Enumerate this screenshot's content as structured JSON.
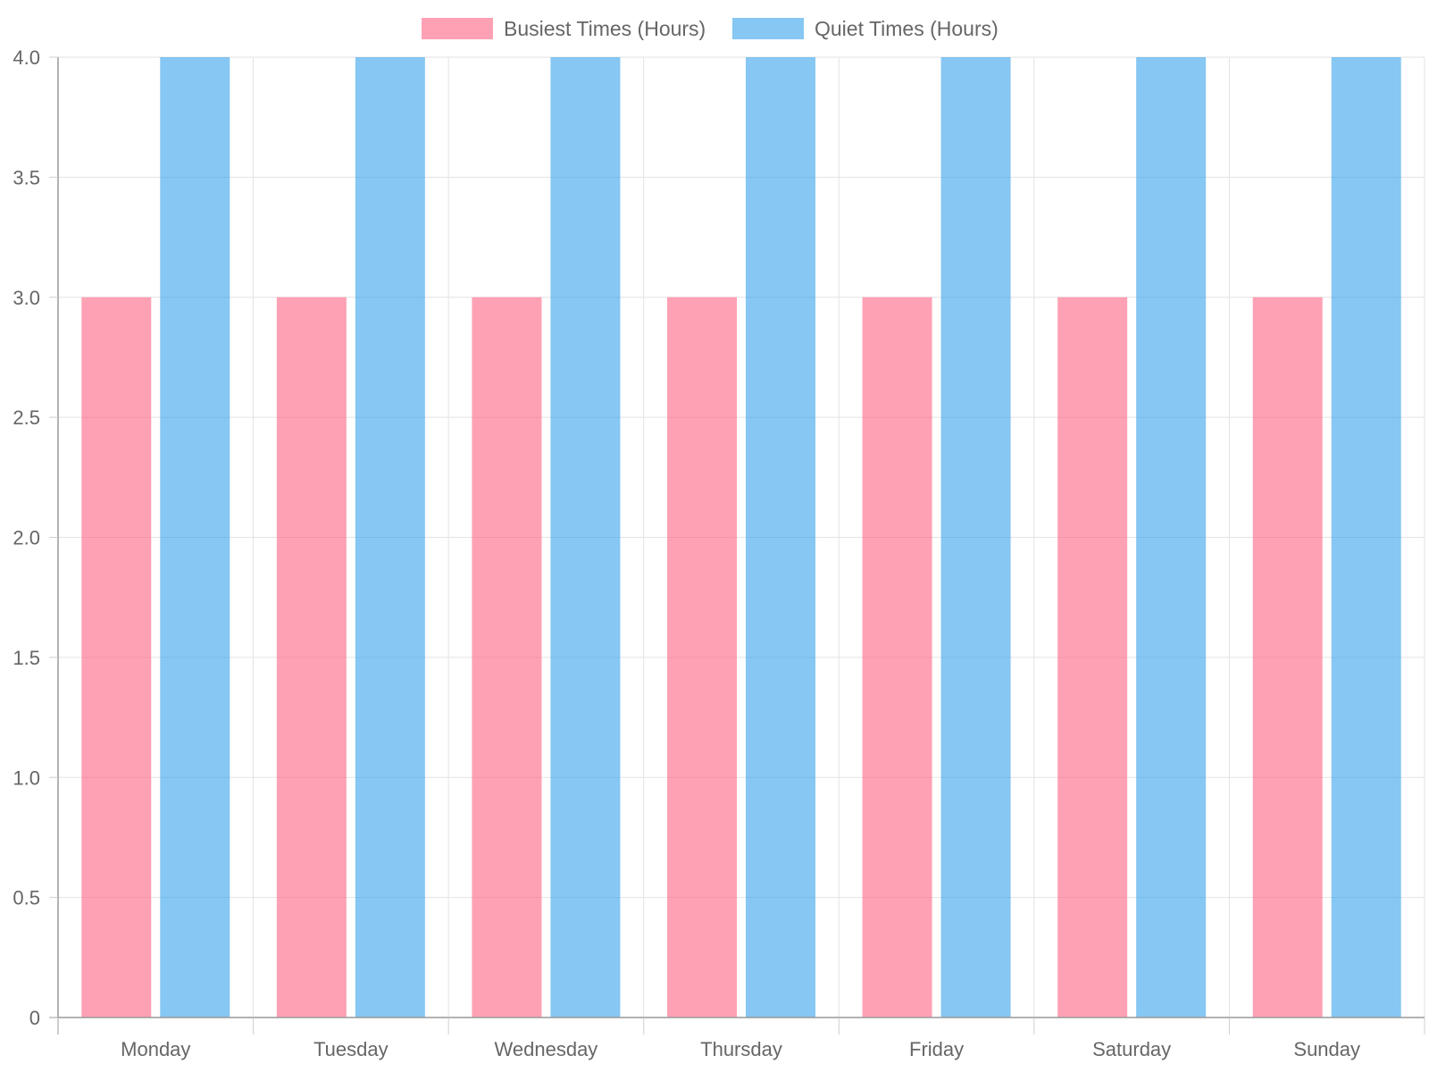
{
  "chart_data": {
    "type": "bar",
    "categories": [
      "Monday",
      "Tuesday",
      "Wednesday",
      "Thursday",
      "Friday",
      "Saturday",
      "Sunday"
    ],
    "series": [
      {
        "name": "Busiest Times (Hours)",
        "values": [
          3,
          3,
          3,
          3,
          3,
          3,
          3
        ],
        "color": "#ff7f9a",
        "fill": "rgba(255, 99, 132, 0.6)"
      },
      {
        "name": "Quiet Times (Hours)",
        "values": [
          4,
          4,
          4,
          4,
          4,
          4,
          4
        ],
        "color": "#5aaee8",
        "fill": "rgba(54, 162, 235, 0.6)"
      }
    ],
    "ylim": [
      0,
      4
    ],
    "yticks": [
      "0",
      "0.5",
      "1.0",
      "1.5",
      "2.0",
      "2.5",
      "3.0",
      "3.5",
      "4.0"
    ],
    "grid": true,
    "legend_position": "top"
  }
}
